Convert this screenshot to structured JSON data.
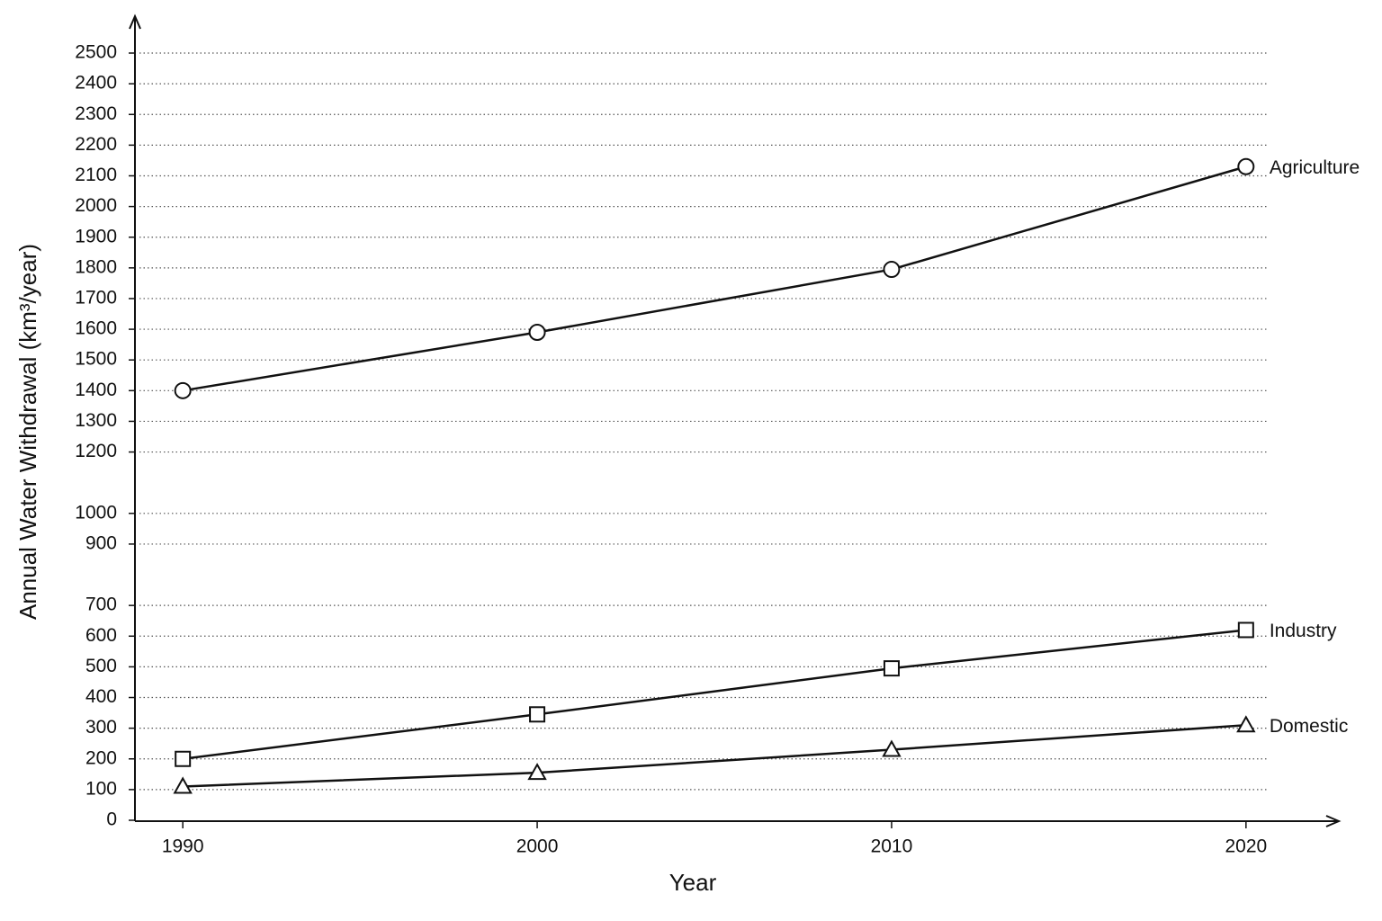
{
  "chart_data": {
    "type": "line",
    "x_label": "Year",
    "y_label": "Annual Water Withdrawal (km³/year)",
    "x": [
      1990,
      2000,
      2010,
      2020
    ],
    "xlim": [
      1988.65,
      2022.67
    ],
    "xticks": [
      1990,
      2000,
      2010,
      2020
    ],
    "ylim": [
      0,
      2500
    ],
    "yticks": [
      0,
      100,
      200,
      300,
      400,
      500,
      600,
      700,
      900,
      1000,
      1200,
      1300,
      1400,
      1500,
      1600,
      1700,
      1800,
      1900,
      2000,
      2100,
      2200,
      2300,
      2400,
      2500
    ],
    "grid": true,
    "series": [
      {
        "name": "Agriculture",
        "color": "#111111",
        "marker": "circle",
        "values": [
          1400,
          1590,
          1795,
          2130
        ]
      },
      {
        "name": "Industry",
        "color": "#111111",
        "marker": "square",
        "values": [
          200,
          345,
          495,
          620
        ]
      },
      {
        "name": "Domestic",
        "color": "#111111",
        "marker": "triangle",
        "values": [
          110,
          155,
          230,
          310
        ]
      }
    ]
  }
}
